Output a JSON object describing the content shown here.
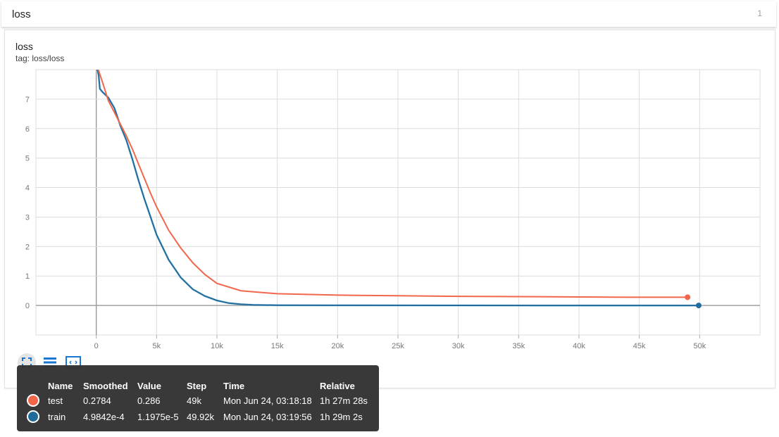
{
  "header": {
    "title": "loss",
    "count": "1"
  },
  "chart": {
    "title": "loss",
    "tag": "tag: loss/loss"
  },
  "toolbar": {
    "buttons": [
      {
        "name": "fit-domain-icon",
        "active": true
      },
      {
        "name": "toggle-log-list-icon",
        "active": false
      },
      {
        "name": "expand-chart-icon",
        "active": false
      }
    ]
  },
  "tooltip": {
    "columns": [
      "Name",
      "Smoothed",
      "Value",
      "Step",
      "Time",
      "Relative"
    ],
    "rows": [
      {
        "name": "test",
        "color": "#f2664b",
        "smoothed": "0.2784",
        "value": "0.286",
        "step": "49k",
        "time": "Mon Jun 24, 03:18:18",
        "relative": "1h 27m 28s"
      },
      {
        "name": "train",
        "color": "#1f6b9c",
        "smoothed": "4.9842e-4",
        "value": "1.1975e-5",
        "step": "49.92k",
        "time": "Mon Jun 24, 03:19:56",
        "relative": "1h 29m 2s"
      }
    ]
  },
  "chart_data": {
    "type": "line",
    "title": "loss",
    "xlim": [
      -5000,
      55000
    ],
    "ylim": [
      -1,
      8
    ],
    "x_ticks": [
      0,
      5000,
      10000,
      15000,
      20000,
      25000,
      30000,
      35000,
      40000,
      45000,
      50000
    ],
    "x_tick_labels": [
      "0",
      "5k",
      "10k",
      "15k",
      "20k",
      "25k",
      "30k",
      "35k",
      "40k",
      "45k",
      "50k"
    ],
    "y_ticks": [
      0,
      1,
      2,
      3,
      4,
      5,
      6,
      7
    ],
    "y_tick_labels": [
      "0",
      "1",
      "2",
      "3",
      "4",
      "5",
      "6",
      "7"
    ],
    "grid": true,
    "series": [
      {
        "name": "test",
        "color": "#f2664b",
        "x": [
          0,
          500,
          1000,
          1500,
          2000,
          2500,
          3000,
          3500,
          4000,
          4500,
          5000,
          6000,
          7000,
          8000,
          9000,
          10000,
          12000,
          15000,
          20000,
          25000,
          30000,
          35000,
          40000,
          45000,
          49000
        ],
        "y": [
          8.2,
          7.6,
          6.95,
          6.55,
          6.15,
          5.75,
          5.3,
          4.8,
          4.3,
          3.8,
          3.35,
          2.55,
          1.95,
          1.45,
          1.05,
          0.75,
          0.5,
          0.4,
          0.35,
          0.33,
          0.31,
          0.3,
          0.29,
          0.28,
          0.28
        ]
      },
      {
        "name": "train",
        "color": "#1f6b9c",
        "x": [
          0,
          200,
          300,
          500,
          1000,
          1500,
          2000,
          2500,
          3000,
          3500,
          4000,
          4500,
          5000,
          6000,
          7000,
          8000,
          9000,
          10000,
          11000,
          12000,
          13000,
          15000,
          20000,
          30000,
          40000,
          49920
        ],
        "y": [
          8.2,
          7.8,
          7.35,
          7.25,
          7.05,
          6.7,
          6.1,
          5.6,
          4.95,
          4.25,
          3.6,
          3.0,
          2.4,
          1.55,
          0.95,
          0.55,
          0.32,
          0.17,
          0.08,
          0.04,
          0.02,
          0.01,
          0.005,
          0.002,
          0.001,
          0.0005
        ]
      }
    ]
  }
}
